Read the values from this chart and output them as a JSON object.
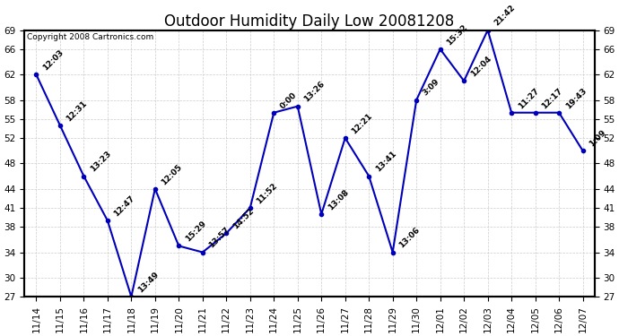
{
  "title": "Outdoor Humidity Daily Low 20081208",
  "copyright": "Copyright 2008 Cartronics.com",
  "line_color": "#0000bb",
  "marker_color": "#0000bb",
  "background_color": "#ffffff",
  "grid_color": "#cccccc",
  "text_color": "#000000",
  "xlabels": [
    "11/14",
    "11/15",
    "11/16",
    "11/17",
    "11/18",
    "11/19",
    "11/20",
    "11/21",
    "11/22",
    "11/23",
    "11/24",
    "11/25",
    "11/26",
    "11/27",
    "11/28",
    "11/29",
    "11/30",
    "12/01",
    "12/02",
    "12/03",
    "12/04",
    "12/05",
    "12/06",
    "12/07"
  ],
  "yvalues": [
    62,
    54,
    46,
    39,
    27,
    44,
    35,
    34,
    37,
    41,
    56,
    57,
    40,
    52,
    46,
    34,
    58,
    66,
    61,
    69,
    56,
    56,
    56,
    50
  ],
  "annotations": [
    "12:03",
    "12:31",
    "13:23",
    "12:47",
    "13:49",
    "12:05",
    "15:29",
    "13:57",
    "14:52",
    "11:52",
    "0:00",
    "13:26",
    "13:08",
    "12:21",
    "13:41",
    "13:06",
    "3:09",
    "15:32",
    "12:04",
    "21:42",
    "11:27",
    "12:17",
    "19:43",
    "1:09"
  ],
  "ylim": [
    27,
    69
  ],
  "yticks": [
    27,
    30,
    34,
    38,
    41,
    44,
    48,
    52,
    55,
    58,
    62,
    66,
    69
  ],
  "title_fontsize": 12,
  "annotation_fontsize": 6.5,
  "axis_tick_fontsize": 7.5,
  "copyright_fontsize": 6.5
}
